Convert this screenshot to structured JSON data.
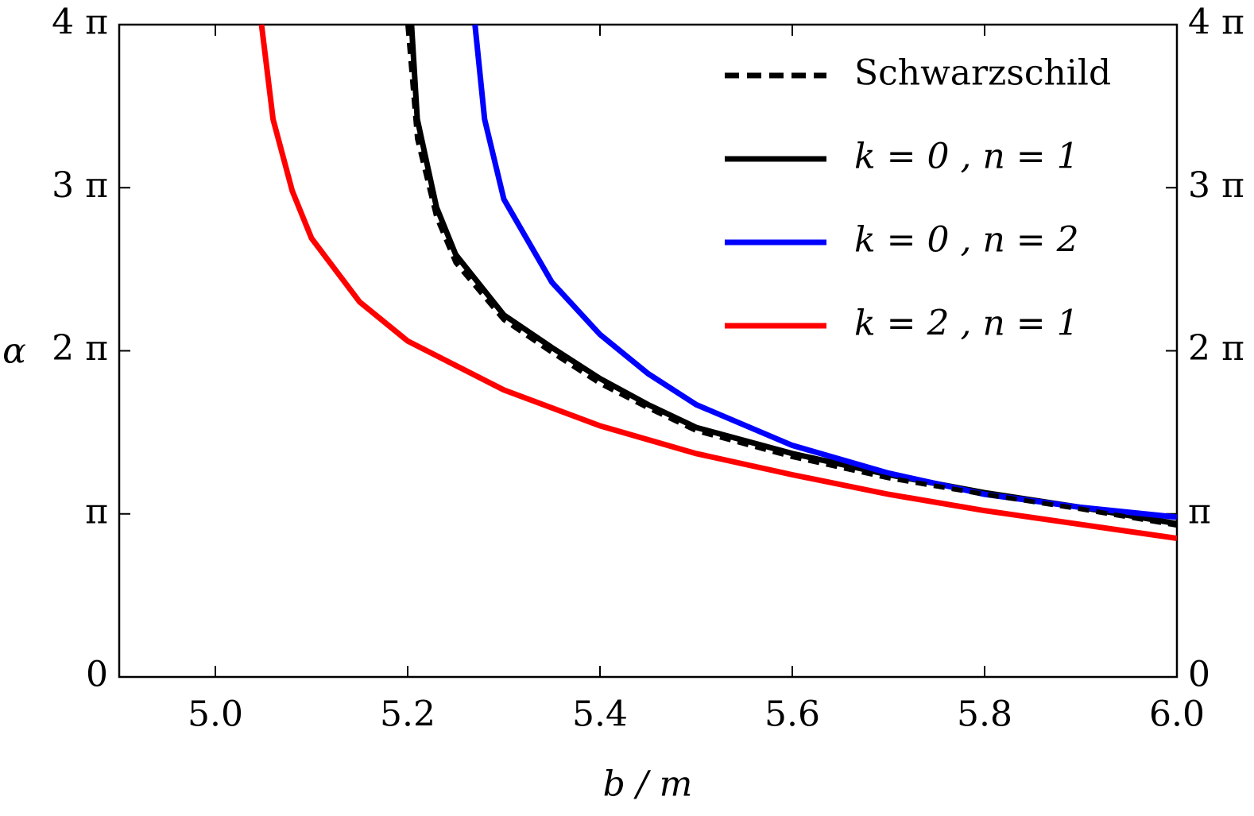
{
  "chart_data": {
    "type": "line",
    "xlabel": "b / m",
    "ylabel": "α",
    "xlim": [
      4.9,
      6.0
    ],
    "ylim": [
      0,
      4
    ],
    "xticks": [
      {
        "value": 5,
        "label": "5.0"
      },
      {
        "value": 5.2,
        "label": "5.2"
      },
      {
        "value": 5.4,
        "label": "5.4"
      },
      {
        "value": 5.6,
        "label": "5.6"
      },
      {
        "value": 5.8,
        "label": "5.8"
      },
      {
        "value": 6,
        "label": "6.0"
      }
    ],
    "yticks": [
      0,
      {
        "value": 1,
        "label": "π"
      },
      {
        "value": 2,
        "label": "2 π"
      },
      {
        "value": 3,
        "label": "3 π"
      },
      {
        "value": 4,
        "label": "4 π"
      }
    ],
    "legend": "upper right",
    "series": [
      {
        "name": "Schwarzschild",
        "color": "#000000",
        "dash": true,
        "x": [
          5.2,
          5.21,
          5.23,
          5.25,
          5.3,
          5.35,
          5.4,
          5.45,
          5.5,
          5.6,
          5.7,
          5.8,
          5.9,
          6.0
        ],
        "values": [
          4,
          3.3,
          2.82,
          2.54,
          2.19,
          1.99,
          1.8,
          1.65,
          1.51,
          1.35,
          1.22,
          1.12,
          1.03,
          0.93
        ]
      },
      {
        "name": "k = 0 , n = 1",
        "color": "#000000",
        "x": [
          5.204,
          5.21,
          5.23,
          5.25,
          5.3,
          5.35,
          5.4,
          5.45,
          5.5,
          5.6,
          5.7,
          5.8,
          5.9,
          6.0
        ],
        "values": [
          4,
          3.42,
          2.88,
          2.59,
          2.22,
          2.02,
          1.83,
          1.67,
          1.53,
          1.37,
          1.24,
          1.13,
          1.04,
          0.94
        ]
      },
      {
        "name": "k = 0 , n = 2",
        "color": "#0000ff",
        "x": [
          5.27,
          5.28,
          5.3,
          5.35,
          5.4,
          5.45,
          5.5,
          5.6,
          5.7,
          5.8,
          5.9,
          6.0
        ],
        "values": [
          4,
          3.42,
          2.93,
          2.42,
          2.1,
          1.86,
          1.67,
          1.42,
          1.25,
          1.12,
          1.04,
          0.98
        ]
      },
      {
        "name": "k = 2 , n = 1",
        "color": "#ff0000",
        "x": [
          5.048,
          5.06,
          5.08,
          5.1,
          5.15,
          5.2,
          5.3,
          5.4,
          5.5,
          5.6,
          5.7,
          5.8,
          5.9,
          6.0
        ],
        "values": [
          4,
          3.42,
          2.98,
          2.69,
          2.3,
          2.06,
          1.76,
          1.54,
          1.37,
          1.24,
          1.12,
          1.02,
          0.935,
          0.85
        ]
      }
    ]
  }
}
